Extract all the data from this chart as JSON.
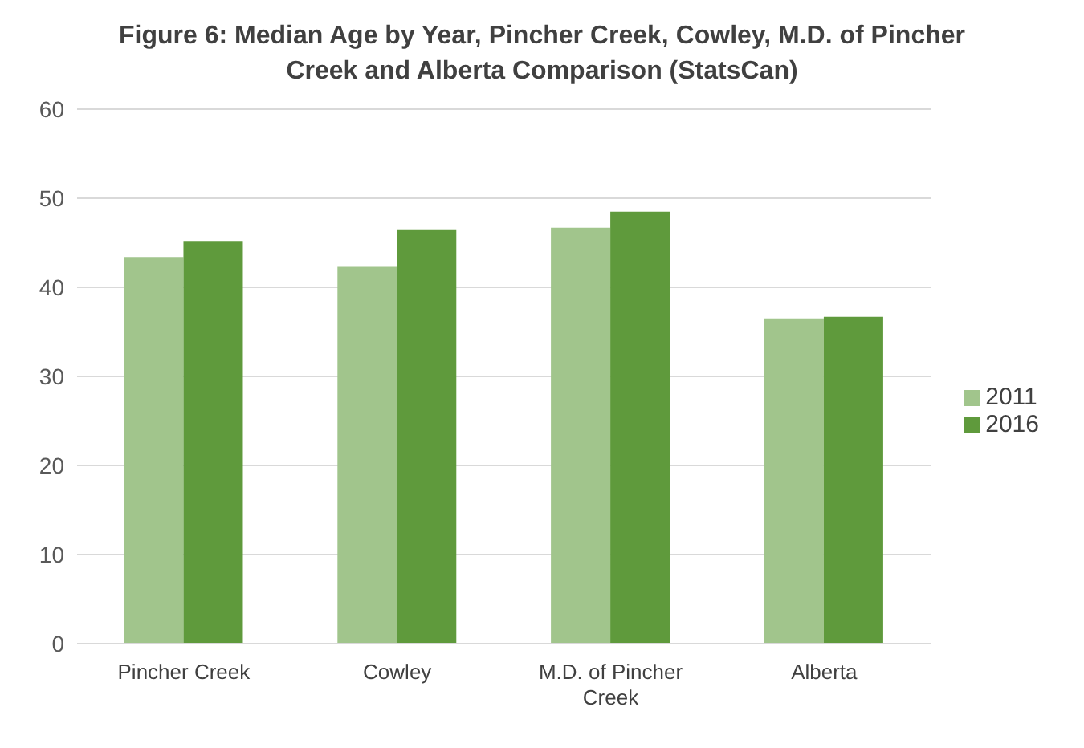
{
  "chart_data": {
    "type": "bar",
    "title": "Figure 6: Median Age by Year, Pincher Creek, Cowley, M.D. of Pincher Creek and Alberta Comparison (StatsCan)",
    "categories": [
      "Pincher Creek",
      "Cowley",
      "M.D. of Pincher Creek",
      "Alberta"
    ],
    "series": [
      {
        "name": "2011",
        "color": "#a1c58c",
        "values": [
          43.4,
          42.3,
          46.7,
          36.5
        ]
      },
      {
        "name": "2016",
        "color": "#5f9a3c",
        "values": [
          45.2,
          46.5,
          48.5,
          36.7
        ]
      }
    ],
    "ylim": [
      0,
      60
    ],
    "yticks": [
      0,
      10,
      20,
      30,
      40,
      50,
      60
    ],
    "grid": "y",
    "legend": "right"
  }
}
